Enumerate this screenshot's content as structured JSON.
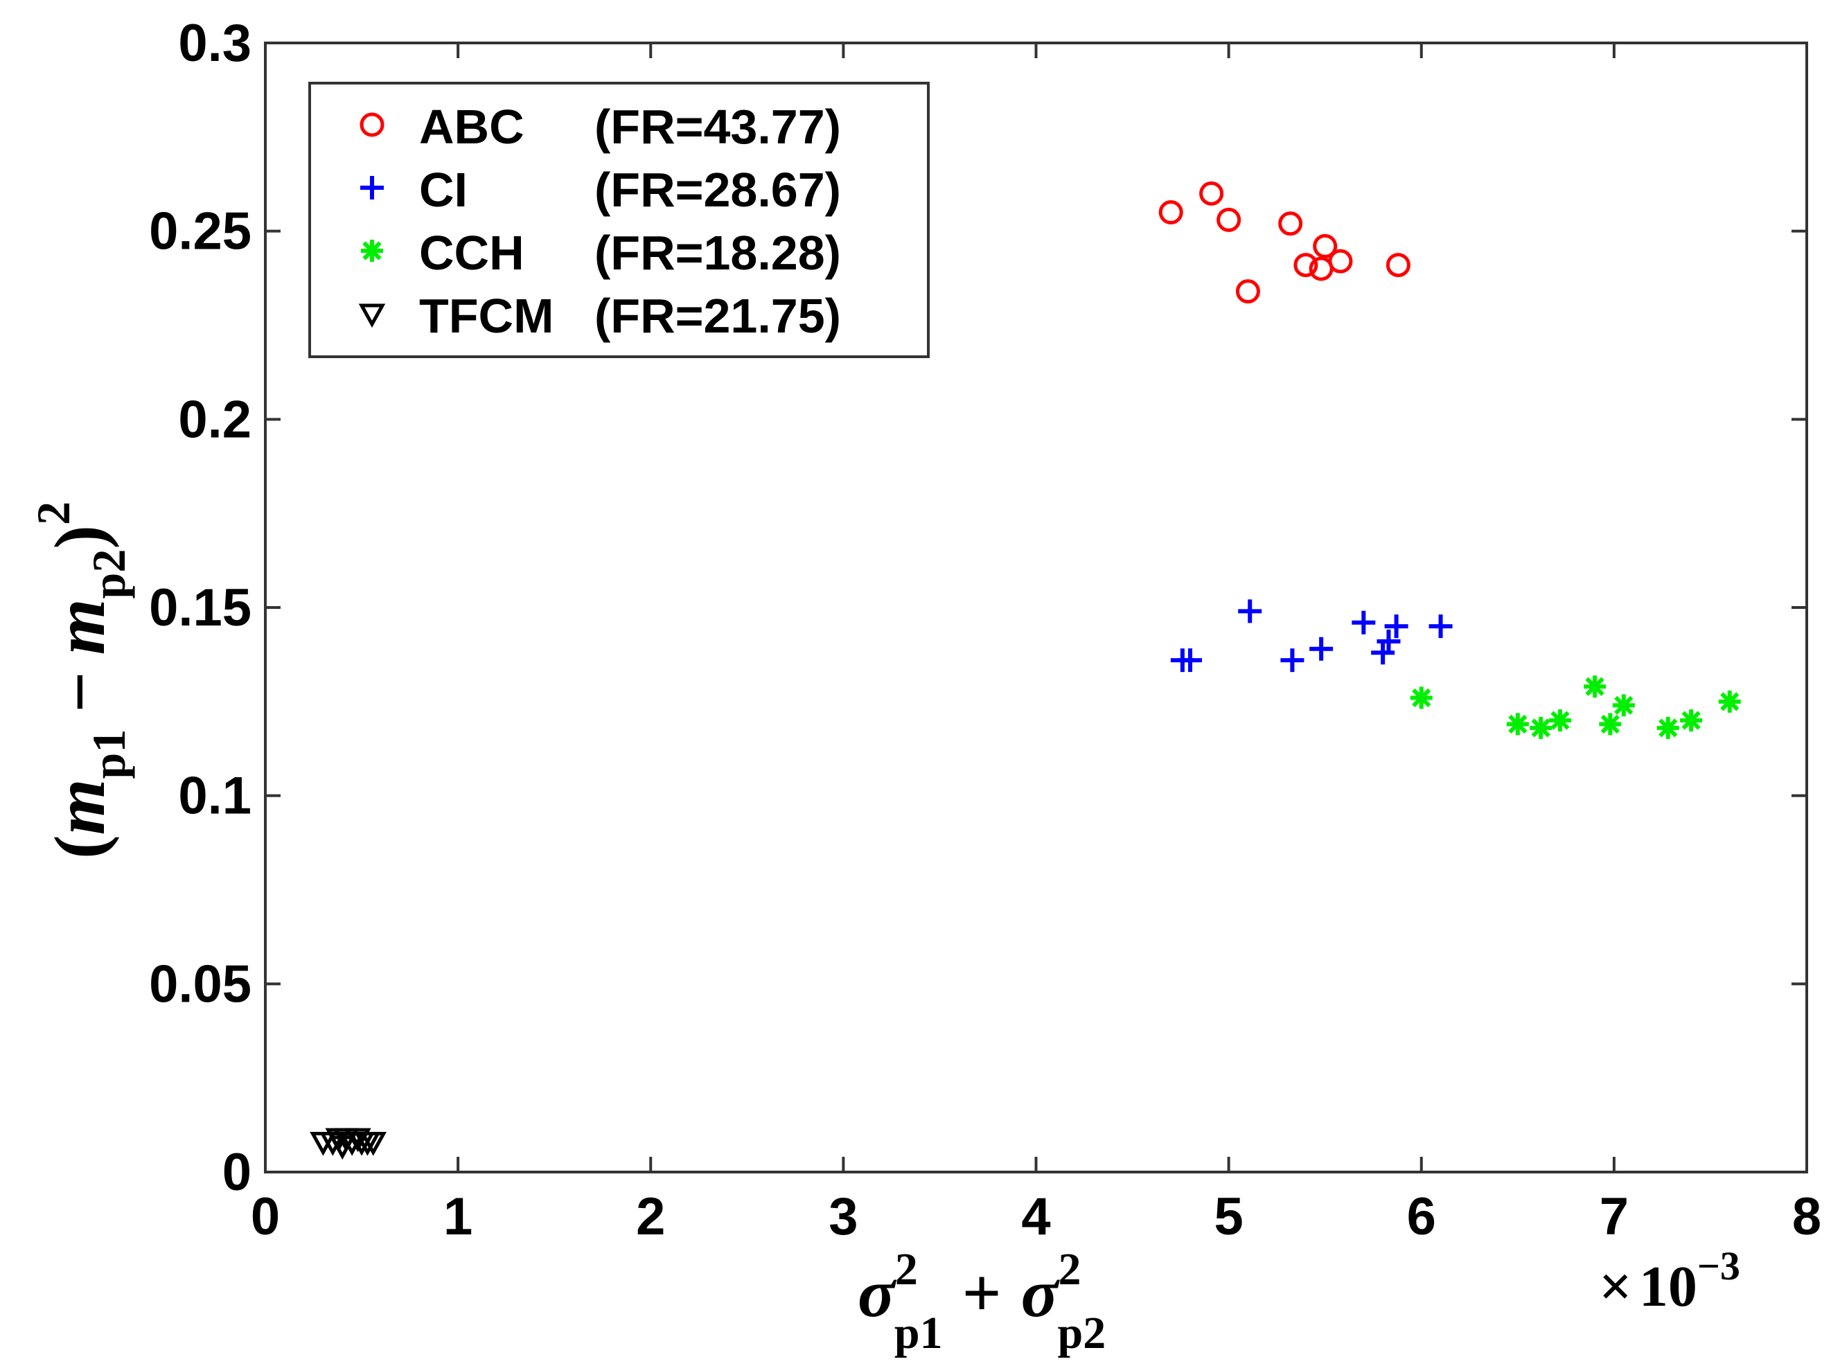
{
  "chart_data": {
    "type": "scatter",
    "xlabel": {
      "base": "σ",
      "sub1": "p1",
      "sub2": "p2",
      "sup": "2",
      "op": "+"
    },
    "ylabel": {
      "open": "(",
      "base": "m",
      "sub1": "p1",
      "minus": "−",
      "sub2": "p2",
      "close": ")",
      "sup": "2"
    },
    "x_multiplier": {
      "times": "×",
      "base": "10",
      "exp": "−3"
    },
    "xlim": [
      0,
      8
    ],
    "ylim": [
      0,
      0.3
    ],
    "xticks": [
      0,
      1,
      2,
      3,
      4,
      5,
      6,
      7,
      8
    ],
    "xtick_labels": [
      "0",
      "1",
      "2",
      "3",
      "4",
      "5",
      "6",
      "7",
      "8"
    ],
    "yticks": [
      0,
      0.05,
      0.1,
      0.15,
      0.2,
      0.25,
      0.3
    ],
    "ytick_labels": [
      "0",
      "0.05",
      "0.1",
      "0.15",
      "0.2",
      "0.25",
      "0.3"
    ],
    "grid": false,
    "legend_position": "top-left",
    "series": [
      {
        "name": "ABC",
        "fr": "(FR=43.77)",
        "marker": "circle",
        "color": "#ff0000",
        "points": [
          [
            4.7,
            0.255
          ],
          [
            4.91,
            0.26
          ],
          [
            5.0,
            0.253
          ],
          [
            5.1,
            0.234
          ],
          [
            5.32,
            0.252
          ],
          [
            5.4,
            0.241
          ],
          [
            5.48,
            0.24
          ],
          [
            5.5,
            0.246
          ],
          [
            5.58,
            0.242
          ],
          [
            5.88,
            0.241
          ]
        ]
      },
      {
        "name": "CI",
        "fr": "(FR=28.67)",
        "marker": "plus",
        "color": "#0000ff",
        "points": [
          [
            4.76,
            0.136
          ],
          [
            4.8,
            0.136
          ],
          [
            5.11,
            0.149
          ],
          [
            5.33,
            0.136
          ],
          [
            5.48,
            0.139
          ],
          [
            5.7,
            0.146
          ],
          [
            5.8,
            0.138
          ],
          [
            5.83,
            0.141
          ],
          [
            5.87,
            0.145
          ],
          [
            6.1,
            0.145
          ]
        ]
      },
      {
        "name": "CCH",
        "fr": "(FR=18.28)",
        "marker": "asterisk",
        "color": "#00ee00",
        "points": [
          [
            6.0,
            0.126
          ],
          [
            6.5,
            0.119
          ],
          [
            6.62,
            0.118
          ],
          [
            6.72,
            0.12
          ],
          [
            6.9,
            0.129
          ],
          [
            6.98,
            0.119
          ],
          [
            7.05,
            0.124
          ],
          [
            7.28,
            0.118
          ],
          [
            7.4,
            0.12
          ],
          [
            7.6,
            0.125
          ]
        ]
      },
      {
        "name": "TFCM",
        "fr": "(FR=21.75)",
        "marker": "triangle-down",
        "color": "#000000",
        "points": [
          [
            0.3,
            0.008
          ],
          [
            0.35,
            0.008
          ],
          [
            0.38,
            0.009
          ],
          [
            0.42,
            0.009
          ],
          [
            0.45,
            0.008
          ],
          [
            0.48,
            0.009
          ],
          [
            0.5,
            0.008
          ],
          [
            0.53,
            0.008
          ],
          [
            0.56,
            0.008
          ],
          [
            0.4,
            0.007
          ]
        ]
      }
    ]
  }
}
